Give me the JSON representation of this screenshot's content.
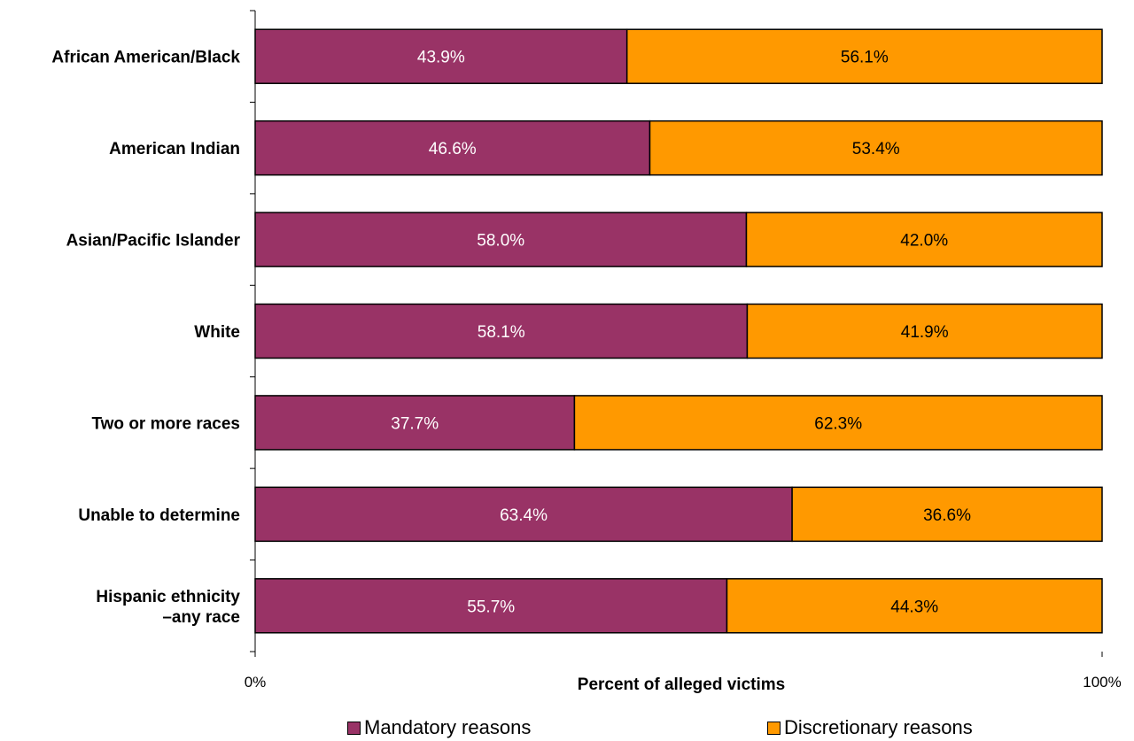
{
  "chart_data": {
    "type": "bar",
    "orientation": "horizontal",
    "stacked": true,
    "categories": [
      "African American/Black",
      "American Indian",
      "Asian/Pacific Islander",
      "White",
      "Two or more races",
      "Unable to determine",
      "Hispanic ethnicity –any race"
    ],
    "category_lines": [
      [
        "African American/Black"
      ],
      [
        "American Indian"
      ],
      [
        "Asian/Pacific Islander"
      ],
      [
        "White"
      ],
      [
        "Two or more races"
      ],
      [
        "Unable to determine"
      ],
      [
        "Hispanic ethnicity",
        "–any race"
      ]
    ],
    "series": [
      {
        "name": "Mandatory reasons",
        "color": "#993366",
        "label_color": "#ffffff",
        "values": [
          43.9,
          46.6,
          58.0,
          58.1,
          37.7,
          63.4,
          55.7
        ],
        "labels": [
          "43.9%",
          "46.6%",
          "58.0%",
          "58.1%",
          "37.7%",
          "63.4%",
          "55.7%"
        ]
      },
      {
        "name": "Discretionary reasons",
        "color": "#ff9900",
        "label_color": "#000000",
        "values": [
          56.1,
          53.4,
          42.0,
          41.9,
          62.3,
          36.6,
          44.3
        ],
        "labels": [
          "56.1%",
          "53.4%",
          "42.0%",
          "41.9%",
          "62.3%",
          "36.6%",
          "44.3%"
        ]
      }
    ],
    "xlim": [
      0,
      100
    ],
    "x_ticks": [
      "0%",
      "100%"
    ],
    "xlabel": "Percent of alleged victims",
    "ylabel": "",
    "legend_position": "bottom",
    "grid": false
  }
}
